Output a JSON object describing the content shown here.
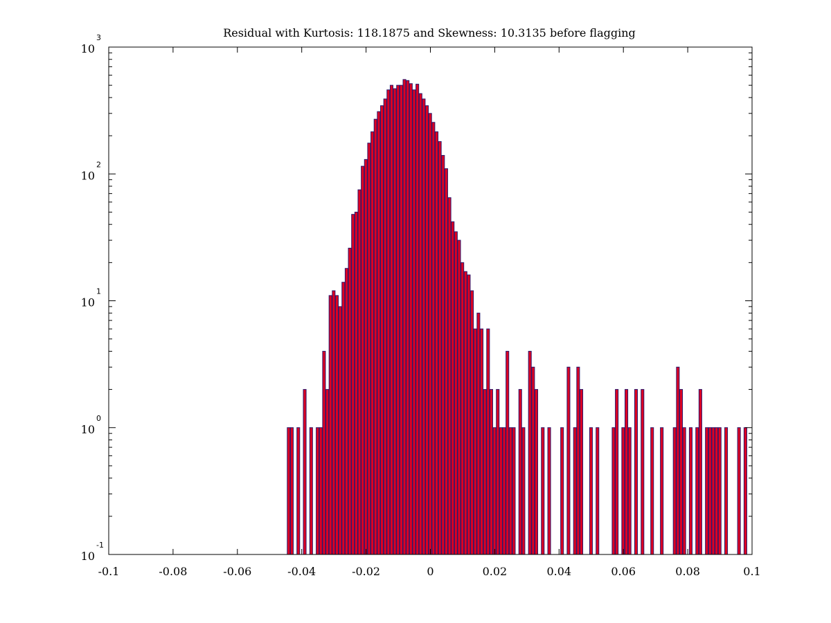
{
  "chart_data": {
    "type": "bar",
    "title": "Residual with Kurtosis: 118.1875 and Skewness: 10.3135 before flagging",
    "xlabel": "",
    "ylabel": "",
    "xlim": [
      -0.1,
      0.1
    ],
    "ylim": [
      0.1,
      1000
    ],
    "y_scale": "log",
    "grid": false,
    "x_ticks": [
      {
        "value": -0.1,
        "label": "-0.1"
      },
      {
        "value": -0.08,
        "label": "-0.08"
      },
      {
        "value": -0.06,
        "label": "-0.06"
      },
      {
        "value": -0.04,
        "label": "-0.04"
      },
      {
        "value": -0.02,
        "label": "-0.02"
      },
      {
        "value": 0,
        "label": "0"
      },
      {
        "value": 0.02,
        "label": "0.02"
      },
      {
        "value": 0.04,
        "label": "0.04"
      },
      {
        "value": 0.06,
        "label": "0.06"
      },
      {
        "value": 0.08,
        "label": "0.08"
      },
      {
        "value": 0.1,
        "label": "0.1"
      }
    ],
    "y_ticks": [
      {
        "value": 0.1,
        "base": "10",
        "exp": "-1"
      },
      {
        "value": 1,
        "base": "10",
        "exp": "0"
      },
      {
        "value": 10,
        "base": "10",
        "exp": "1"
      },
      {
        "value": 100,
        "base": "10",
        "exp": "2"
      },
      {
        "value": 1000,
        "base": "10",
        "exp": "3"
      }
    ],
    "bar_color": "#dd0022",
    "bar_edge_color": "#2a1a6e",
    "bin_width": 0.001,
    "series": [
      {
        "values": [
          [
            -0.044,
            1
          ],
          [
            -0.043,
            1
          ],
          [
            -0.041,
            1
          ],
          [
            -0.039,
            2
          ],
          [
            -0.037,
            1
          ],
          [
            -0.035,
            1
          ],
          [
            -0.034,
            1
          ],
          [
            -0.033,
            4
          ],
          [
            -0.032,
            2
          ],
          [
            -0.031,
            11
          ],
          [
            -0.03,
            12
          ],
          [
            -0.029,
            11
          ],
          [
            -0.028,
            9
          ],
          [
            -0.027,
            14
          ],
          [
            -0.026,
            18
          ],
          [
            -0.025,
            26
          ],
          [
            -0.024,
            48
          ],
          [
            -0.023,
            50
          ],
          [
            -0.022,
            75
          ],
          [
            -0.021,
            115
          ],
          [
            -0.02,
            130
          ],
          [
            -0.019,
            175
          ],
          [
            -0.018,
            215
          ],
          [
            -0.017,
            270
          ],
          [
            -0.016,
            310
          ],
          [
            -0.015,
            345
          ],
          [
            -0.014,
            390
          ],
          [
            -0.013,
            460
          ],
          [
            -0.012,
            500
          ],
          [
            -0.011,
            470
          ],
          [
            -0.01,
            500
          ],
          [
            -0.009,
            500
          ],
          [
            -0.008,
            555
          ],
          [
            -0.007,
            545
          ],
          [
            -0.006,
            515
          ],
          [
            -0.005,
            460
          ],
          [
            -0.004,
            510
          ],
          [
            -0.003,
            430
          ],
          [
            -0.002,
            390
          ],
          [
            -0.001,
            345
          ],
          [
            0.0,
            300
          ],
          [
            0.001,
            255
          ],
          [
            0.002,
            215
          ],
          [
            0.003,
            180
          ],
          [
            0.004,
            140
          ],
          [
            0.005,
            110
          ],
          [
            0.006,
            65
          ],
          [
            0.007,
            42
          ],
          [
            0.008,
            35
          ],
          [
            0.009,
            30
          ],
          [
            0.01,
            20
          ],
          [
            0.011,
            17
          ],
          [
            0.012,
            16
          ],
          [
            0.013,
            12
          ],
          [
            0.014,
            6
          ],
          [
            0.015,
            8
          ],
          [
            0.016,
            6
          ],
          [
            0.017,
            2
          ],
          [
            0.018,
            6
          ],
          [
            0.019,
            2
          ],
          [
            0.02,
            1
          ],
          [
            0.021,
            2
          ],
          [
            0.022,
            1
          ],
          [
            0.023,
            1
          ],
          [
            0.024,
            4
          ],
          [
            0.025,
            1
          ],
          [
            0.026,
            1
          ],
          [
            0.028,
            2
          ],
          [
            0.029,
            1
          ],
          [
            0.031,
            4
          ],
          [
            0.032,
            3
          ],
          [
            0.033,
            2
          ],
          [
            0.035,
            1
          ],
          [
            0.037,
            1
          ],
          [
            0.041,
            1
          ],
          [
            0.043,
            3
          ],
          [
            0.045,
            1
          ],
          [
            0.046,
            3
          ],
          [
            0.047,
            2
          ],
          [
            0.05,
            1
          ],
          [
            0.052,
            1
          ],
          [
            0.057,
            1
          ],
          [
            0.058,
            2
          ],
          [
            0.06,
            1
          ],
          [
            0.061,
            2
          ],
          [
            0.062,
            1
          ],
          [
            0.064,
            2
          ],
          [
            0.066,
            2
          ],
          [
            0.069,
            1
          ],
          [
            0.072,
            1
          ],
          [
            0.076,
            1
          ],
          [
            0.077,
            3
          ],
          [
            0.078,
            2
          ],
          [
            0.079,
            1
          ],
          [
            0.081,
            1
          ],
          [
            0.083,
            1
          ],
          [
            0.084,
            2
          ],
          [
            0.086,
            1
          ],
          [
            0.087,
            1
          ],
          [
            0.088,
            1
          ],
          [
            0.089,
            1
          ],
          [
            0.09,
            1
          ],
          [
            0.092,
            1
          ],
          [
            0.096,
            1
          ],
          [
            0.098,
            1
          ]
        ]
      }
    ]
  }
}
